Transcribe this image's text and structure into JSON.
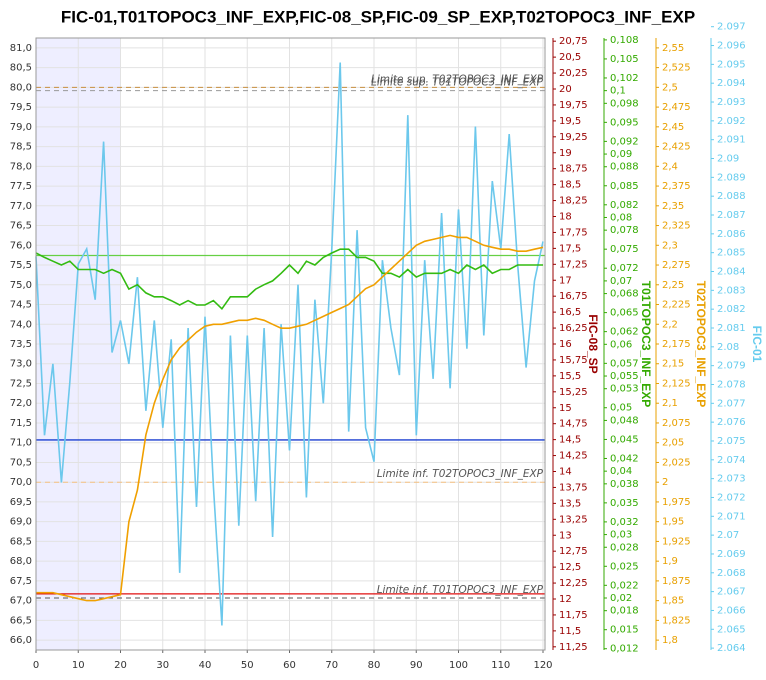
{
  "chart_data": {
    "type": "line",
    "title": "FIC-01,T01TOPOC3_INF_EXP,FIC-08_SP,FIC-09_SP_EXP,T02TOPOC3_INF_EXP",
    "grid": true,
    "x": [
      0,
      2,
      4,
      6,
      8,
      10,
      12,
      14,
      16,
      18,
      20,
      22,
      24,
      26,
      28,
      30,
      32,
      34,
      36,
      38,
      40,
      42,
      44,
      46,
      48,
      50,
      52,
      54,
      56,
      58,
      60,
      62,
      64,
      66,
      68,
      70,
      72,
      74,
      76,
      78,
      80,
      82,
      84,
      86,
      88,
      90,
      92,
      94,
      96,
      98,
      100,
      102,
      104,
      106,
      108,
      110,
      112,
      114,
      116,
      118,
      120
    ],
    "xlim": [
      0,
      120
    ],
    "xticks": [
      0,
      10,
      20,
      30,
      40,
      50,
      60,
      70,
      80,
      90,
      100,
      110,
      120
    ],
    "shaded_x": [
      0,
      20
    ],
    "ylim": [
      65.75,
      81.25
    ],
    "yticks": [
      {
        "value": 66,
        "label": "66,0"
      },
      {
        "value": 66.5,
        "label": "66,5"
      },
      {
        "value": 67,
        "label": "67,0"
      },
      {
        "value": 67.5,
        "label": "67,5"
      },
      {
        "value": 68,
        "label": "68,0"
      },
      {
        "value": 68.5,
        "label": "68,5"
      },
      {
        "value": 69,
        "label": "69,0"
      },
      {
        "value": 69.5,
        "label": "69,5"
      },
      {
        "value": 70,
        "label": "70,0"
      },
      {
        "value": 70.5,
        "label": "70,5"
      },
      {
        "value": 71,
        "label": "71,0"
      },
      {
        "value": 71.5,
        "label": "71,5"
      },
      {
        "value": 72,
        "label": "72,0"
      },
      {
        "value": 72.5,
        "label": "72,5"
      },
      {
        "value": 73,
        "label": "73,0"
      },
      {
        "value": 73.5,
        "label": "73,5"
      },
      {
        "value": 74,
        "label": "74,0"
      },
      {
        "value": 74.5,
        "label": "74,5"
      },
      {
        "value": 75,
        "label": "75,0"
      },
      {
        "value": 75.5,
        "label": "75,5"
      },
      {
        "value": 76,
        "label": "76,0"
      },
      {
        "value": 76.5,
        "label": "76,5"
      },
      {
        "value": 77,
        "label": "77,0"
      },
      {
        "value": 77.5,
        "label": "77,5"
      },
      {
        "value": 78,
        "label": "78,0"
      },
      {
        "value": 78.5,
        "label": "78,5"
      },
      {
        "value": 79,
        "label": "79,0"
      },
      {
        "value": 79.5,
        "label": "79,5"
      },
      {
        "value": 80,
        "label": "80,0"
      },
      {
        "value": 80.5,
        "label": "80,5"
      },
      {
        "value": 81,
        "label": "81,0"
      }
    ],
    "y2label": "FIC-08_SP",
    "y2color": "#990000",
    "y2lim": [
      11.2,
      20.8
    ],
    "y2ticks": [
      {
        "value": 11.25,
        "label": "11,25"
      },
      {
        "value": 11.5,
        "label": "11,5"
      },
      {
        "value": 11.75,
        "label": "11,75"
      },
      12,
      {
        "value": 12.25,
        "label": "12,25"
      },
      {
        "value": 12.5,
        "label": "12,5"
      },
      {
        "value": 12.75,
        "label": "12,75"
      },
      13,
      {
        "value": 13.25,
        "label": "13,25"
      },
      {
        "value": 13.5,
        "label": "13,5"
      },
      {
        "value": 13.75,
        "label": "13,75"
      },
      14,
      {
        "value": 14.25,
        "label": "14,25"
      },
      {
        "value": 14.5,
        "label": "14,5"
      },
      {
        "value": 14.75,
        "label": "14,75"
      },
      15,
      {
        "value": 15.25,
        "label": "15,25"
      },
      {
        "value": 15.5,
        "label": "15,5"
      },
      {
        "value": 15.75,
        "label": "15,75"
      },
      16,
      {
        "value": 16.25,
        "label": "16,25"
      },
      {
        "value": 16.5,
        "label": "16,5"
      },
      {
        "value": 16.75,
        "label": "16,75"
      },
      17,
      {
        "value": 17.25,
        "label": "17,25"
      },
      {
        "value": 17.5,
        "label": "17,5"
      },
      {
        "value": 17.75,
        "label": "17,75"
      },
      18,
      {
        "value": 18.25,
        "label": "18,25"
      },
      {
        "value": 18.5,
        "label": "18,5"
      },
      {
        "value": 18.75,
        "label": "18,75"
      },
      19,
      {
        "value": 19.25,
        "label": "19,25"
      },
      {
        "value": 19.5,
        "label": "19,5"
      },
      {
        "value": 19.75,
        "label": "19,75"
      },
      20,
      {
        "value": 20.25,
        "label": "20,25"
      },
      {
        "value": 20.5,
        "label": "20,5"
      },
      {
        "value": 20.75,
        "label": "20,75"
      }
    ],
    "y3label": "T01TOPOC3_INF_EXP",
    "y3color": "#33aa00",
    "y3lim": [
      0.0118,
      0.1083
    ],
    "y3ticks": [
      {
        "value": 0.012,
        "label": "0,012"
      },
      {
        "value": 0.015,
        "label": "0,015"
      },
      {
        "value": 0.018,
        "label": "0,018"
      },
      {
        "value": 0.02,
        "label": "0,02"
      },
      {
        "value": 0.022,
        "label": "0,022"
      },
      {
        "value": 0.025,
        "label": "0,025"
      },
      {
        "value": 0.028,
        "label": "0,028"
      },
      {
        "value": 0.03,
        "label": "0,03"
      },
      {
        "value": 0.032,
        "label": "0,032"
      },
      {
        "value": 0.035,
        "label": "0,035"
      },
      {
        "value": 0.038,
        "label": "0,038"
      },
      {
        "value": 0.04,
        "label": "0,04"
      },
      {
        "value": 0.042,
        "label": "0,042"
      },
      {
        "value": 0.045,
        "label": "0,045"
      },
      {
        "value": 0.048,
        "label": "0,048"
      },
      {
        "value": 0.05,
        "label": "0,05"
      },
      {
        "value": 0.053,
        "label": "0,053"
      },
      {
        "value": 0.055,
        "label": "0,055"
      },
      {
        "value": 0.057,
        "label": "0,057"
      },
      {
        "value": 0.06,
        "label": "0,06"
      },
      {
        "value": 0.062,
        "label": "0,062"
      },
      {
        "value": 0.065,
        "label": "0,065"
      },
      {
        "value": 0.068,
        "label": "0,068"
      },
      {
        "value": 0.07,
        "label": "0,07"
      },
      {
        "value": 0.072,
        "label": "0,072"
      },
      {
        "value": 0.075,
        "label": "0,075"
      },
      {
        "value": 0.078,
        "label": "0,078"
      },
      {
        "value": 0.08,
        "label": "0,08"
      },
      {
        "value": 0.082,
        "label": "0,082"
      },
      {
        "value": 0.085,
        "label": "0,085"
      },
      {
        "value": 0.088,
        "label": "0,088"
      },
      {
        "value": 0.09,
        "label": "0,09"
      },
      {
        "value": 0.092,
        "label": "0,092"
      },
      {
        "value": 0.095,
        "label": "0,095"
      },
      {
        "value": 0.098,
        "label": "0,098"
      },
      {
        "value": 0.1,
        "label": "0,1"
      },
      {
        "value": 0.102,
        "label": "0,102"
      },
      {
        "value": 0.105,
        "label": "0,105"
      },
      {
        "value": 0.108,
        "label": "0,108"
      }
    ],
    "y4label": "T02TOPOC3_INF_EXP",
    "y4color": "#e8a000",
    "y4lim": [
      1.7875,
      2.5625
    ],
    "y4ticks": [
      {
        "value": 1.8,
        "label": "1,8"
      },
      {
        "value": 1.825,
        "label": "1,825"
      },
      {
        "value": 1.85,
        "label": "1,85"
      },
      {
        "value": 1.875,
        "label": "1,875"
      },
      {
        "value": 1.9,
        "label": "1,9"
      },
      {
        "value": 1.925,
        "label": "1,925"
      },
      {
        "value": 1.95,
        "label": "1,95"
      },
      {
        "value": 1.975,
        "label": "1,975"
      },
      2,
      {
        "value": 2.025,
        "label": "2,025"
      },
      {
        "value": 2.05,
        "label": "2,05"
      },
      {
        "value": 2.075,
        "label": "2,075"
      },
      {
        "value": 2.1,
        "label": "2,1"
      },
      {
        "value": 2.125,
        "label": "2,125"
      },
      {
        "value": 2.15,
        "label": "2,15"
      },
      {
        "value": 2.175,
        "label": "2,175"
      },
      {
        "value": 2.2,
        "label": "2,2"
      },
      {
        "value": 2.225,
        "label": "2,225"
      },
      {
        "value": 2.25,
        "label": "2,25"
      },
      {
        "value": 2.275,
        "label": "2,275"
      },
      {
        "value": 2.3,
        "label": "2,3"
      },
      {
        "value": 2.325,
        "label": "2,325"
      },
      {
        "value": 2.35,
        "label": "2,35"
      },
      {
        "value": 2.375,
        "label": "2,375"
      },
      {
        "value": 2.4,
        "label": "2,4"
      },
      {
        "value": 2.425,
        "label": "2,425"
      },
      {
        "value": 2.45,
        "label": "2,45"
      },
      {
        "value": 2.475,
        "label": "2,475"
      },
      {
        "value": 2.5,
        "label": "2,5"
      },
      {
        "value": 2.525,
        "label": "2,525"
      },
      {
        "value": 2.55,
        "label": "2,55"
      }
    ],
    "y5label": "FIC-01",
    "y5color": "#66ccee",
    "y5lim": [
      2.0639,
      2.0964
    ],
    "y5ticks": [
      2.064,
      2.065,
      2.066,
      2.067,
      2.068,
      2.069,
      2.07,
      2.071,
      2.072,
      2.073,
      2.074,
      2.075,
      2.076,
      2.077,
      2.078,
      2.079,
      2.08,
      2.081,
      2.082,
      2.083,
      2.084,
      2.085,
      2.086,
      2.087,
      2.088,
      2.089,
      2.09,
      2.091,
      2.092,
      2.093,
      2.094,
      2.095,
      2.096,
      2.097
    ],
    "hlines": [
      {
        "value": 71.07,
        "axis": "y",
        "color": "#1a3fd0"
      },
      {
        "value": 12.08,
        "axis": "y2",
        "color": "#e01010"
      },
      {
        "value": 0.074,
        "axis": "y3",
        "color": "#66d044"
      }
    ],
    "limits": [
      {
        "label": "Limite sup. T01TOPOC3_INF_EXP",
        "value": 0.1,
        "axis": "y3",
        "color": "#999999"
      },
      {
        "label": "Limite sup. T02TOPOC3_INF_EXP",
        "value": 2.5,
        "axis": "y4",
        "color": "#c89040"
      },
      {
        "label": "Limite inf. T02TOPOC3_INF_EXP",
        "value": 2,
        "axis": "y4",
        "color": "#f5c080"
      },
      {
        "label": "Limite inf. T01TOPOC3_INF_EXP",
        "value": 0.02,
        "axis": "y3",
        "color": "#555555"
      }
    ],
    "series": [
      {
        "axis": "y5",
        "color": "#6cc8ec",
        "values": [
          2.0848,
          2.0753,
          2.0791,
          2.0728,
          2.0781,
          2.0844,
          2.0852,
          2.0825,
          2.0909,
          2.0797,
          2.0814,
          2.0791,
          2.0837,
          2.0766,
          2.0814,
          2.0757,
          2.0804,
          2.068,
          2.081,
          2.0715,
          2.0816,
          2.0726,
          2.0652,
          2.0806,
          2.0705,
          2.0806,
          2.0718,
          2.081,
          2.0699,
          2.0812,
          2.0745,
          2.0833,
          2.072,
          2.0825,
          2.077,
          2.0852,
          2.0951,
          2.0755,
          2.0862,
          2.0757,
          2.0739,
          2.0846,
          2.081,
          2.0785,
          2.0923,
          2.0753,
          2.0846,
          2.0783,
          2.0871,
          2.0778,
          2.0873,
          2.0799,
          2.0917,
          2.0806,
          2.0888,
          2.0852,
          2.0913,
          2.0844,
          2.0789,
          2.0835,
          2.0856
        ]
      },
      {
        "axis": "y3",
        "color": "#33bb11",
        "values": [
          0.0744,
          0.0737,
          0.0731,
          0.0725,
          0.0731,
          0.0718,
          0.0718,
          0.0718,
          0.0712,
          0.0718,
          0.0712,
          0.0687,
          0.0694,
          0.0681,
          0.0675,
          0.0675,
          0.0669,
          0.0662,
          0.0669,
          0.0662,
          0.0662,
          0.0669,
          0.0656,
          0.0675,
          0.0675,
          0.0675,
          0.0687,
          0.0694,
          0.07,
          0.0712,
          0.0725,
          0.0712,
          0.0731,
          0.0725,
          0.0737,
          0.0744,
          0.075,
          0.075,
          0.0737,
          0.0737,
          0.0731,
          0.0712,
          0.0712,
          0.0706,
          0.0718,
          0.0706,
          0.0712,
          0.0712,
          0.0712,
          0.0718,
          0.0712,
          0.0725,
          0.0718,
          0.0725,
          0.0712,
          0.0718,
          0.0718,
          0.0725,
          0.0725,
          0.0725,
          0.0725
        ]
      },
      {
        "axis": "y4",
        "color": "#f0a000",
        "values": [
          1.86,
          1.86,
          1.86,
          1.8575,
          1.855,
          1.8525,
          1.85,
          1.85,
          1.8525,
          1.855,
          1.8575,
          1.95,
          1.99,
          2.06,
          2.1,
          2.13,
          2.155,
          2.17,
          2.18,
          2.19,
          2.1975,
          2.2,
          2.2,
          2.2025,
          2.205,
          2.205,
          2.2075,
          2.205,
          2.2,
          2.195,
          2.195,
          2.1975,
          2.2,
          2.205,
          2.21,
          2.215,
          2.22,
          2.225,
          2.235,
          2.245,
          2.25,
          2.26,
          2.27,
          2.28,
          2.29,
          2.3,
          2.305,
          2.3075,
          2.31,
          2.3125,
          2.31,
          2.31,
          2.305,
          2.3,
          2.2975,
          2.295,
          2.295,
          2.2925,
          2.2925,
          2.295,
          2.2975
        ]
      }
    ]
  }
}
